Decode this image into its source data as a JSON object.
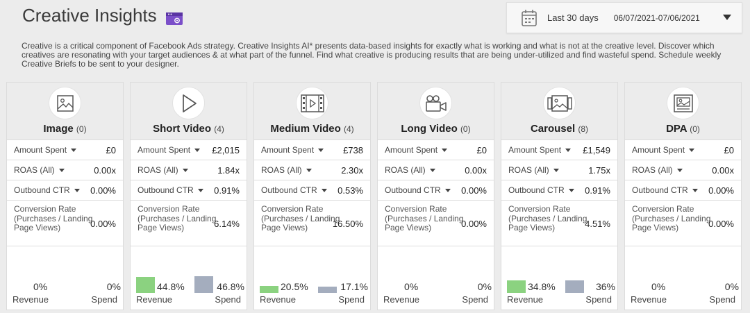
{
  "header": {
    "title": "Creative Insights",
    "date_label": "Last 30 days",
    "date_range": "06/07/2021-07/06/2021"
  },
  "description": "Creative is a critical component of Facebook Ads strategy. Creative Insights AI* presents data-based insights for exactly what is working and what is not at the creative level. Discover which creatives are resonating with your target audiences & at what part of the funnel. Find what creative is producing results that are being under-utilized and find wasteful spend. Schedule weekly Creative Briefs to be sent to your designer.",
  "labels": {
    "amount_spent": "Amount Spent",
    "roas": "ROAS (All)",
    "ctr": "Outbound CTR",
    "conversion_rate": "Conversion Rate (Purchases / Landing Page Views)",
    "revenue": "Revenue",
    "spend": "Spend"
  },
  "colors": {
    "revenue_bar": "#8bd280",
    "spend_bar": "#a4adbe",
    "accent_icon": "#7b4fc9"
  },
  "cards": [
    {
      "icon": "image-icon",
      "title": "Image",
      "count": "(0)",
      "amount_spent": "£0",
      "roas": "0.00x",
      "ctr": "0.00%",
      "conversion_rate": "0.00%",
      "revenue_pct": "0%",
      "spend_pct": "0%",
      "revenue_level": 0,
      "spend_level": 0
    },
    {
      "icon": "play-icon",
      "title": "Short Video",
      "count": "(4)",
      "amount_spent": "£2,015",
      "roas": "1.84x",
      "ctr": "0.91%",
      "conversion_rate": "6.14%",
      "revenue_pct": "44.8%",
      "spend_pct": "46.8%",
      "revenue_level": 44.8,
      "spend_level": 46.8
    },
    {
      "icon": "film-icon",
      "title": "Medium Video",
      "count": "(4)",
      "amount_spent": "£738",
      "roas": "2.30x",
      "ctr": "0.53%",
      "conversion_rate": "16.50%",
      "revenue_pct": "20.5%",
      "spend_pct": "17.1%",
      "revenue_level": 20.5,
      "spend_level": 17.1
    },
    {
      "icon": "camera-icon",
      "title": "Long Video",
      "count": "(0)",
      "amount_spent": "£0",
      "roas": "0.00x",
      "ctr": "0.00%",
      "conversion_rate": "0.00%",
      "revenue_pct": "0%",
      "spend_pct": "0%",
      "revenue_level": 0,
      "spend_level": 0
    },
    {
      "icon": "carousel-icon",
      "title": "Carousel",
      "count": "(8)",
      "amount_spent": "£1,549",
      "roas": "1.75x",
      "ctr": "0.91%",
      "conversion_rate": "4.51%",
      "revenue_pct": "34.8%",
      "spend_pct": "36%",
      "revenue_level": 34.8,
      "spend_level": 36
    },
    {
      "icon": "catalog-icon",
      "title": "DPA",
      "count": "(0)",
      "amount_spent": "£0",
      "roas": "0.00x",
      "ctr": "0.00%",
      "conversion_rate": "0.00%",
      "revenue_pct": "0%",
      "spend_pct": "0%",
      "revenue_level": 0,
      "spend_level": 0
    }
  ]
}
